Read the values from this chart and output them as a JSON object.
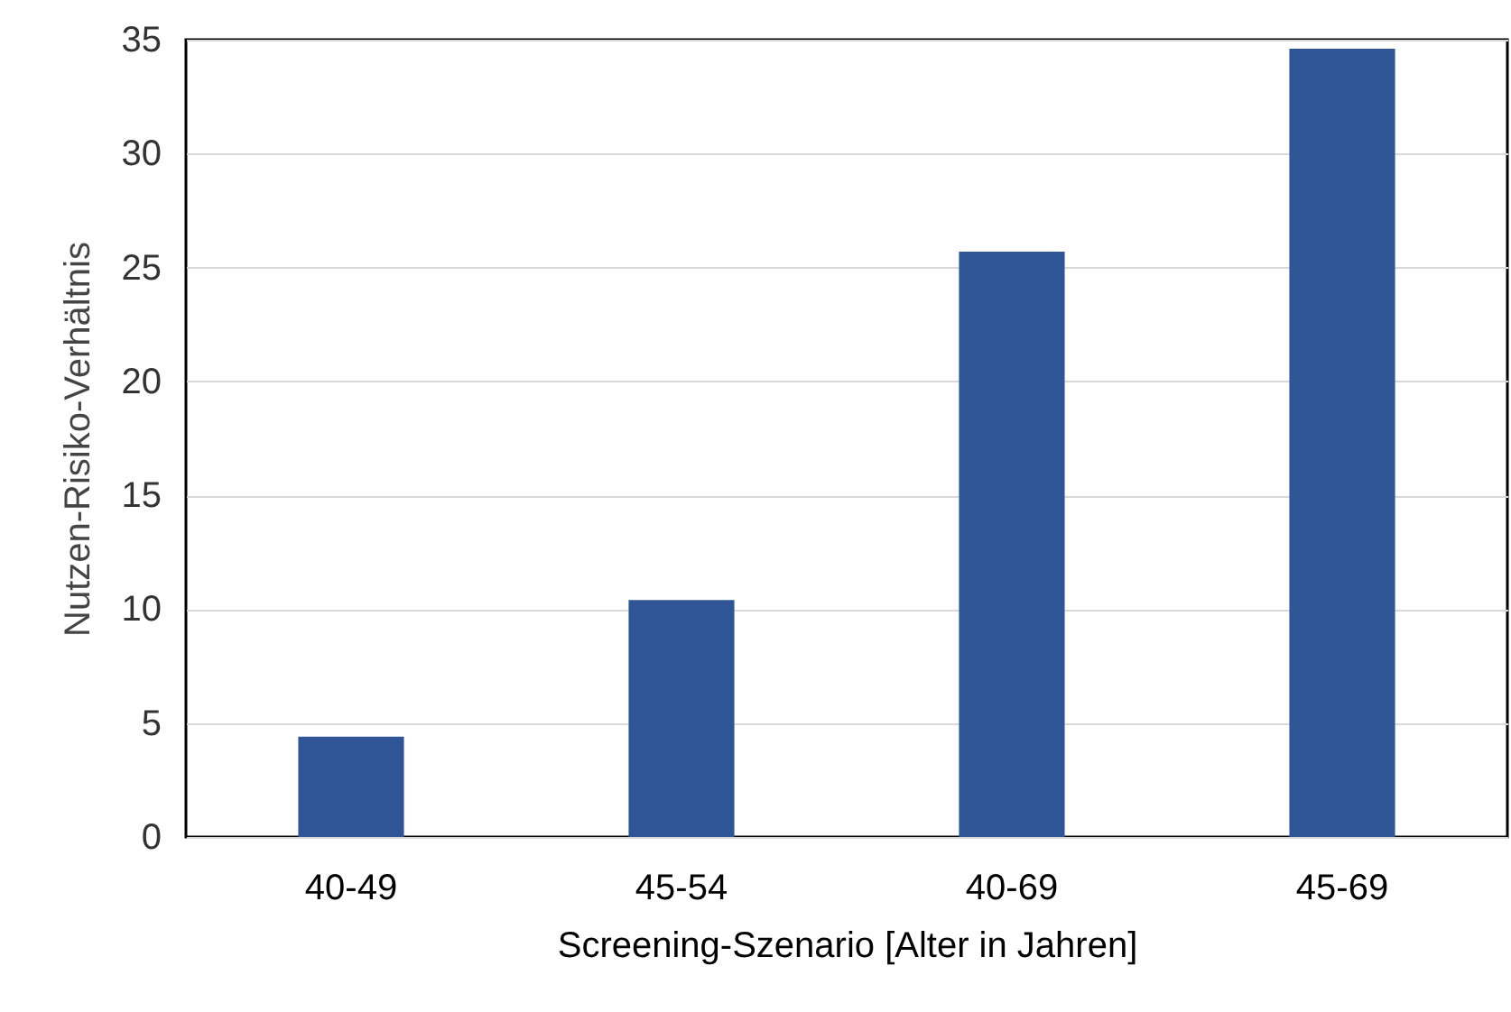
{
  "chart_data": {
    "type": "bar",
    "xlabel": "Screening-Szenario [Alter in Jahren]",
    "ylabel": "Nutzen-Risiko-Verhältnis",
    "categories": [
      "40-49",
      "45-54",
      "40-69",
      "45-69"
    ],
    "values": [
      4.4,
      10.4,
      25.7,
      34.6
    ],
    "color": "#2f5597",
    "ylim": [
      0,
      35
    ],
    "yticks": [
      0,
      5,
      10,
      15,
      20,
      25,
      30,
      35
    ],
    "grid": "y"
  }
}
